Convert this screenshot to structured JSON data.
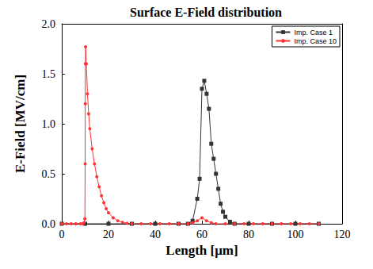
{
  "chart_data": {
    "type": "line",
    "title": "Surface E-Field distribution",
    "x_label": "Length [μm]",
    "y_label": "E-Field [MV/cm]",
    "xlim": [
      0,
      120
    ],
    "xticks": [
      0,
      20,
      40,
      60,
      80,
      100,
      120
    ],
    "ylim": [
      0,
      2
    ],
    "yticks": [
      {
        "value": 0,
        "label": "0.0"
      },
      0.5,
      {
        "value": 1,
        "label": "1.0"
      },
      1.5,
      {
        "value": 2,
        "label": "2.0"
      }
    ],
    "grid": false,
    "legend": "upper right",
    "series": [
      {
        "name": "Imp. Case 1",
        "color": "#333333",
        "marker": "square",
        "line_style": "solid",
        "x": [
          0,
          10,
          20,
          30,
          40,
          50,
          54,
          56,
          58,
          59,
          60,
          61,
          62,
          63,
          64,
          65,
          66,
          67,
          68,
          69,
          70,
          72,
          74,
          80,
          90,
          100,
          110
        ],
        "values": [
          0,
          0,
          0,
          0,
          0,
          0,
          0,
          0.03,
          0.25,
          0.45,
          1.35,
          1.43,
          1.3,
          1.15,
          0.8,
          0.65,
          0.5,
          0.35,
          0.2,
          0.12,
          0.07,
          0.02,
          0,
          0,
          0,
          0,
          0
        ]
      },
      {
        "name": "Imp. Case 10",
        "color": "#ff3333",
        "marker": "circle",
        "line_style": "solid",
        "x": [
          0,
          2,
          4,
          6,
          8,
          9,
          9.5,
          9.9,
          10,
          10.05,
          10.1,
          10.2,
          10.5,
          11,
          11.5,
          12,
          13,
          14,
          15,
          16,
          17,
          18,
          19,
          20,
          22,
          24,
          26,
          28,
          30,
          34,
          38,
          42,
          46,
          50,
          54,
          56,
          58,
          60,
          62,
          64,
          66,
          70,
          74,
          78,
          82,
          86,
          90,
          94,
          98,
          102,
          106,
          110
        ],
        "values": [
          0,
          0,
          0,
          0,
          0,
          0,
          0.01,
          0.05,
          0.6,
          1.2,
          1.6,
          1.77,
          1.6,
          1.3,
          1.1,
          0.95,
          0.75,
          0.6,
          0.47,
          0.37,
          0.28,
          0.21,
          0.15,
          0.11,
          0.06,
          0.03,
          0.015,
          0.005,
          0,
          0,
          0,
          0,
          0,
          0,
          0,
          0.01,
          0.03,
          0.06,
          0.03,
          0.01,
          0,
          0,
          0,
          0,
          0,
          0,
          0,
          0,
          0,
          0,
          0,
          0
        ]
      }
    ]
  }
}
